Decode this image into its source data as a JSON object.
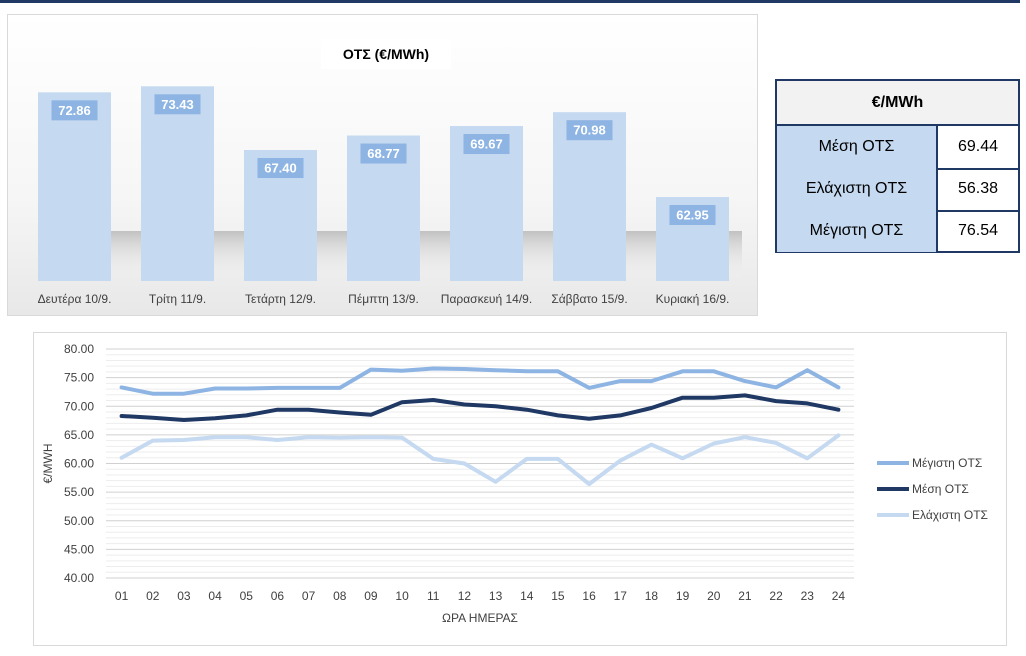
{
  "bar_chart_title": "ΟΤΣ (€/MWh)",
  "stats_table": {
    "header": "€/MWh",
    "rows": [
      {
        "label": "Μέση ΟΤΣ",
        "value": "69.44"
      },
      {
        "label": "Ελάχιστη ΟΤΣ",
        "value": "56.38"
      },
      {
        "label": "Μέγιστη ΟΤΣ",
        "value": "76.54"
      }
    ]
  },
  "colors": {
    "bar": "#c5d9f1",
    "bar_label_bg": "#8db4e2",
    "max_line": "#8db4e2",
    "avg_line": "#1f3864",
    "min_line": "#c5d9f1",
    "border_navy": "#1f3864"
  },
  "chart_data": [
    {
      "type": "bar",
      "title": "ΟΤΣ (€/MWh)",
      "categories": [
        "Δευτέρα 10/9.",
        "Τρίτη 11/9.",
        "Τετάρτη 12/9.",
        "Πέμπτη 13/9.",
        "Παρασκευή 14/9.",
        "Σάββατο 15/9.",
        "Κυριακή 16/9."
      ],
      "values": [
        72.86,
        73.43,
        67.4,
        68.77,
        69.67,
        70.98,
        62.95
      ],
      "value_labels": [
        "72.86",
        "73.43",
        "67.40",
        "68.77",
        "69.67",
        "70.98",
        "62.95"
      ],
      "xlabel": "",
      "ylabel": "",
      "ylim": [
        0,
        75
      ],
      "grid": false
    },
    {
      "type": "line",
      "x": [
        "01",
        "02",
        "03",
        "04",
        "05",
        "06",
        "07",
        "08",
        "09",
        "10",
        "11",
        "12",
        "13",
        "14",
        "15",
        "16",
        "17",
        "18",
        "19",
        "20",
        "21",
        "22",
        "23",
        "24"
      ],
      "series": [
        {
          "name": "Μέγιστη ΟΤΣ",
          "values": [
            73.3,
            72.2,
            72.2,
            73.1,
            73.1,
            73.2,
            73.2,
            73.2,
            76.4,
            76.2,
            76.6,
            76.5,
            76.3,
            76.1,
            76.1,
            73.2,
            74.4,
            74.4,
            76.1,
            76.1,
            74.4,
            73.3,
            76.3,
            73.3
          ]
        },
        {
          "name": "Μέση ΟΤΣ",
          "values": [
            68.3,
            68.0,
            67.6,
            67.9,
            68.4,
            69.4,
            69.4,
            68.9,
            68.5,
            70.7,
            71.1,
            70.3,
            70.0,
            69.4,
            68.4,
            67.8,
            68.4,
            69.7,
            71.5,
            71.5,
            71.9,
            70.9,
            70.5,
            69.4
          ]
        },
        {
          "name": "Ελάχιστη ΟΤΣ",
          "values": [
            61.0,
            64.0,
            64.1,
            64.6,
            64.6,
            64.1,
            64.6,
            64.5,
            64.6,
            64.5,
            60.8,
            60.0,
            56.8,
            60.8,
            60.8,
            56.4,
            60.5,
            63.3,
            60.9,
            63.5,
            64.6,
            63.6,
            60.9,
            64.9
          ]
        }
      ],
      "xlabel": "ΩΡΑ ΗΜΕΡΑΣ",
      "ylabel": "€/MWH",
      "ylim": [
        40,
        80
      ],
      "y_ticks": [
        "40.00",
        "45.00",
        "50.00",
        "55.00",
        "60.00",
        "65.00",
        "70.00",
        "75.00",
        "80.00"
      ],
      "grid": true,
      "legend": "right"
    }
  ]
}
